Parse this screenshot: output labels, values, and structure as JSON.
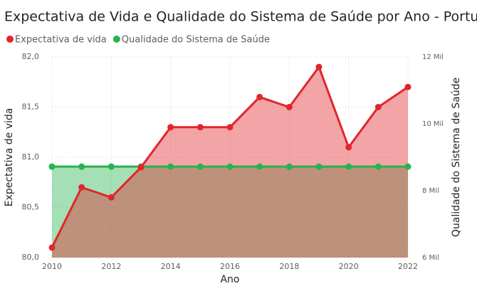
{
  "chart_data": {
    "type": "area",
    "title": "Expectativa de Vida e Qualidade do Sistema de Saúde por Ano - Portugal",
    "x_label": "Ano",
    "y_label": "Expectativa de vida",
    "y2_label": "Qualidade do Sistema de Saúde",
    "x": [
      2010,
      2011,
      2012,
      2013,
      2014,
      2015,
      2016,
      2017,
      2018,
      2019,
      2020,
      2021,
      2022
    ],
    "xlim": [
      2010,
      2022
    ],
    "xticks": [
      2010,
      2012,
      2014,
      2016,
      2018,
      2020,
      2022
    ],
    "ylim": [
      80,
      82
    ],
    "yticks": [
      {
        "value": 80,
        "label": "80,0"
      },
      {
        "value": 80.5,
        "label": "80,5"
      },
      {
        "value": 81,
        "label": "81,0"
      },
      {
        "value": 81.5,
        "label": "81,5"
      },
      {
        "value": 82,
        "label": "82,0"
      }
    ],
    "y2lim": [
      6000,
      12000
    ],
    "y2ticks": [
      {
        "value": 6000,
        "label": "6 Mil"
      },
      {
        "value": 8000,
        "label": "8 Mil"
      },
      {
        "value": 10000,
        "label": "10 Mil"
      },
      {
        "value": 12000,
        "label": "12 Mil"
      }
    ],
    "grid": true,
    "series": [
      {
        "name": "Expectativa de vida",
        "color": "#e0262b",
        "values": [
          80.1,
          80.7,
          80.6,
          80.9,
          81.3,
          81.3,
          81.3,
          81.6,
          81.5,
          81.9,
          81.1,
          81.5,
          81.7
        ]
      },
      {
        "name": "Qualidade do Sistema de Saúde",
        "color": "#27b34f",
        "axis": "y2",
        "values": [
          8720,
          8720,
          8720,
          8720,
          8720,
          8720,
          8720,
          8720,
          8720,
          8720,
          8720,
          8720,
          8720
        ]
      }
    ]
  }
}
